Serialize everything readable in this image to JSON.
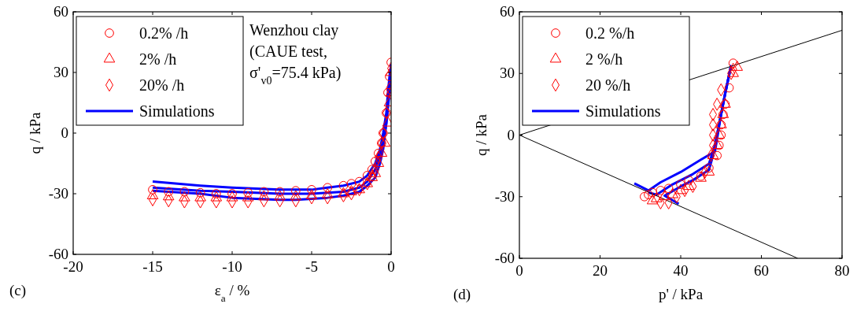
{
  "chart_data": [
    {
      "type": "scatter",
      "xlabel": "ε$_{a}$ / %",
      "ylabel": "q / kPa",
      "xlim": [
        -20,
        0
      ],
      "ylim": [
        -60,
        60
      ],
      "xticks": [
        -20,
        -15,
        -10,
        -5,
        0
      ],
      "yticks": [
        -60,
        -30,
        0,
        30,
        60
      ],
      "grid": false,
      "legend": "top left",
      "annotations": [
        "Wenzhou clay\n(CAUE test,\nσ'$_{v0}$=75.4 kPa)",
        "(c)"
      ],
      "series": [
        {
          "name": "0.2% /h",
          "color": "#ff0000",
          "marker": "circle",
          "x": [
            -15,
            -14,
            -13,
            -12,
            -11,
            -10,
            -9,
            -8,
            -7,
            -6,
            -5,
            -4,
            -3,
            -2.5,
            -2,
            -1.5,
            -1.2,
            -1,
            -0.8,
            -0.6,
            -0.5,
            -0.3,
            -0.2,
            -0.1,
            0
          ],
          "values": [
            -28,
            -29,
            -29,
            -29.5,
            -30,
            -30,
            -29.5,
            -29,
            -29,
            -28.5,
            -28,
            -27,
            -26,
            -25,
            -24,
            -21,
            -18,
            -14,
            -10,
            -5,
            0,
            10,
            20,
            28,
            35
          ]
        },
        {
          "name": "2% /h",
          "color": "#ff0000",
          "marker": "triangle",
          "x": [
            -15,
            -14,
            -13,
            -12,
            -11,
            -10,
            -9,
            -8,
            -7,
            -6,
            -5,
            -4,
            -3,
            -2.5,
            -2,
            -1.5,
            -1.2,
            -1,
            -0.8,
            -0.6,
            -0.4,
            -0.2,
            -0.1,
            0,
            0
          ],
          "values": [
            -31,
            -31.5,
            -32,
            -32,
            -32,
            -32,
            -32,
            -31.5,
            -31.5,
            -31.5,
            -31,
            -30.5,
            -30,
            -29,
            -28,
            -25,
            -22,
            -20,
            -15,
            -10,
            -5,
            5,
            15,
            20,
            30
          ]
        },
        {
          "name": "20% /h",
          "color": "#ff0000",
          "marker": "diamond",
          "x": [
            -15,
            -14,
            -13,
            -12,
            -11,
            -10,
            -9,
            -8,
            -7,
            -6,
            -5,
            -4,
            -3,
            -2.5,
            -2,
            -1.5,
            -1.2,
            -1,
            -0.8,
            -0.6,
            -0.5,
            -0.3,
            -0.1,
            0
          ],
          "values": [
            -33,
            -33.5,
            -34,
            -34,
            -34,
            -34,
            -34,
            -33.5,
            -33.5,
            -33.5,
            -32,
            -32,
            -31,
            -30,
            -28,
            -25,
            -21,
            -18,
            -12,
            -5,
            0,
            10,
            22,
            32
          ]
        },
        {
          "name": "Simulations",
          "type": "line",
          "color": "#0000ff",
          "x": [
            -15,
            -12,
            -10,
            -7,
            -5,
            -4,
            -3,
            -2,
            -1.5,
            -1,
            -0.7,
            -0.5,
            -0.3,
            -0.2,
            -0.1,
            0
          ],
          "values": [
            -24,
            -26,
            -27,
            -28,
            -28,
            -27,
            -26,
            -24,
            -21,
            -15,
            -8,
            0,
            10,
            20,
            28,
            34
          ]
        },
        {
          "type": "line",
          "color": "#0000ff",
          "x": [
            -15,
            -12,
            -10,
            -7,
            -5,
            -4,
            -3,
            -2,
            -1.5,
            -1,
            -0.7,
            -0.5,
            -0.3,
            -0.2,
            -0.1,
            0
          ],
          "values": [
            -27,
            -28.5,
            -29,
            -30,
            -30,
            -29.5,
            -29,
            -27,
            -24,
            -18,
            -11,
            -5,
            5,
            15,
            25,
            34
          ]
        },
        {
          "type": "line",
          "color": "#0000ff",
          "x": [
            -15,
            -12,
            -10,
            -7,
            -6,
            -5,
            -4,
            -3,
            -2,
            -1.5,
            -1,
            -0.7,
            -0.5,
            -0.3,
            -0.1,
            0
          ],
          "values": [
            -28.5,
            -30,
            -32,
            -33,
            -33,
            -32.5,
            -32,
            -31,
            -29,
            -26,
            -22,
            -15,
            -8,
            5,
            20,
            34
          ]
        }
      ]
    },
    {
      "type": "scatter",
      "xlabel": "p' / kPa",
      "ylabel": "q / kPa",
      "xlim": [
        0,
        80
      ],
      "ylim": [
        -60,
        60
      ],
      "xticks": [
        0,
        20,
        40,
        60,
        80
      ],
      "yticks": [
        -60,
        -30,
        0,
        30,
        60
      ],
      "grid": false,
      "legend": "top left",
      "annotations": [
        "(d)"
      ],
      "series": [
        {
          "name": "0.2 %/h",
          "color": "#ff0000",
          "marker": "circle",
          "x": [
            53,
            52,
            51,
            50.5,
            50,
            50,
            49.5,
            49,
            47,
            45,
            42,
            40,
            37,
            35,
            33,
            32,
            31
          ],
          "values": [
            35,
            23,
            15,
            10,
            5,
            0,
            -5,
            -10,
            -16,
            -20,
            -22,
            -24,
            -26,
            -27,
            -28,
            -29,
            -30
          ]
        },
        {
          "name": "2 %/h",
          "color": "#ff0000",
          "marker": "triangle",
          "x": [
            54,
            53,
            51,
            50.5,
            50,
            49.5,
            49,
            48,
            47,
            45,
            42,
            40,
            38,
            36,
            34,
            33
          ],
          "values": [
            33,
            30,
            15,
            10,
            5,
            0,
            -5,
            -10,
            -18,
            -21,
            -25,
            -27,
            -29,
            -30,
            -31,
            -32
          ]
        },
        {
          "name": "20 %/h",
          "color": "#ff0000",
          "marker": "diamond",
          "x": [
            53,
            52.5,
            50,
            49,
            48,
            48,
            48,
            48,
            47.5,
            46,
            43,
            41,
            39,
            37,
            35
          ],
          "values": [
            32,
            30,
            22,
            15,
            10,
            5,
            0,
            -5,
            -10,
            -18,
            -25,
            -27,
            -30,
            -33,
            -33
          ]
        },
        {
          "name": "Simulations",
          "type": "line",
          "color": "#0000ff",
          "x": [
            52.5,
            51,
            50,
            48.5,
            45,
            40,
            35,
            32,
            28.5
          ],
          "values": [
            34,
            20,
            10,
            -8,
            -12,
            -18,
            -23,
            -27,
            -23.5
          ]
        },
        {
          "type": "line",
          "color": "#0000ff",
          "x": [
            52.5,
            51,
            50,
            48.5,
            47,
            43,
            38,
            34,
            32
          ],
          "values": [
            34,
            20,
            10,
            -5,
            -14,
            -19,
            -24,
            -29,
            -28
          ]
        },
        {
          "type": "line",
          "color": "#0000ff",
          "x": [
            52.5,
            51,
            50,
            48,
            47,
            43,
            40,
            36,
            39.5
          ],
          "values": [
            34,
            20,
            10,
            -10,
            -17,
            -22,
            -25,
            -29.5,
            -33.5
          ]
        },
        {
          "type": "line",
          "color": "#000000",
          "x": [
            0,
            80
          ],
          "values": [
            0,
            51
          ]
        },
        {
          "type": "line",
          "color": "#000000",
          "x": [
            0,
            69
          ],
          "values": [
            0,
            -60
          ]
        }
      ]
    }
  ]
}
